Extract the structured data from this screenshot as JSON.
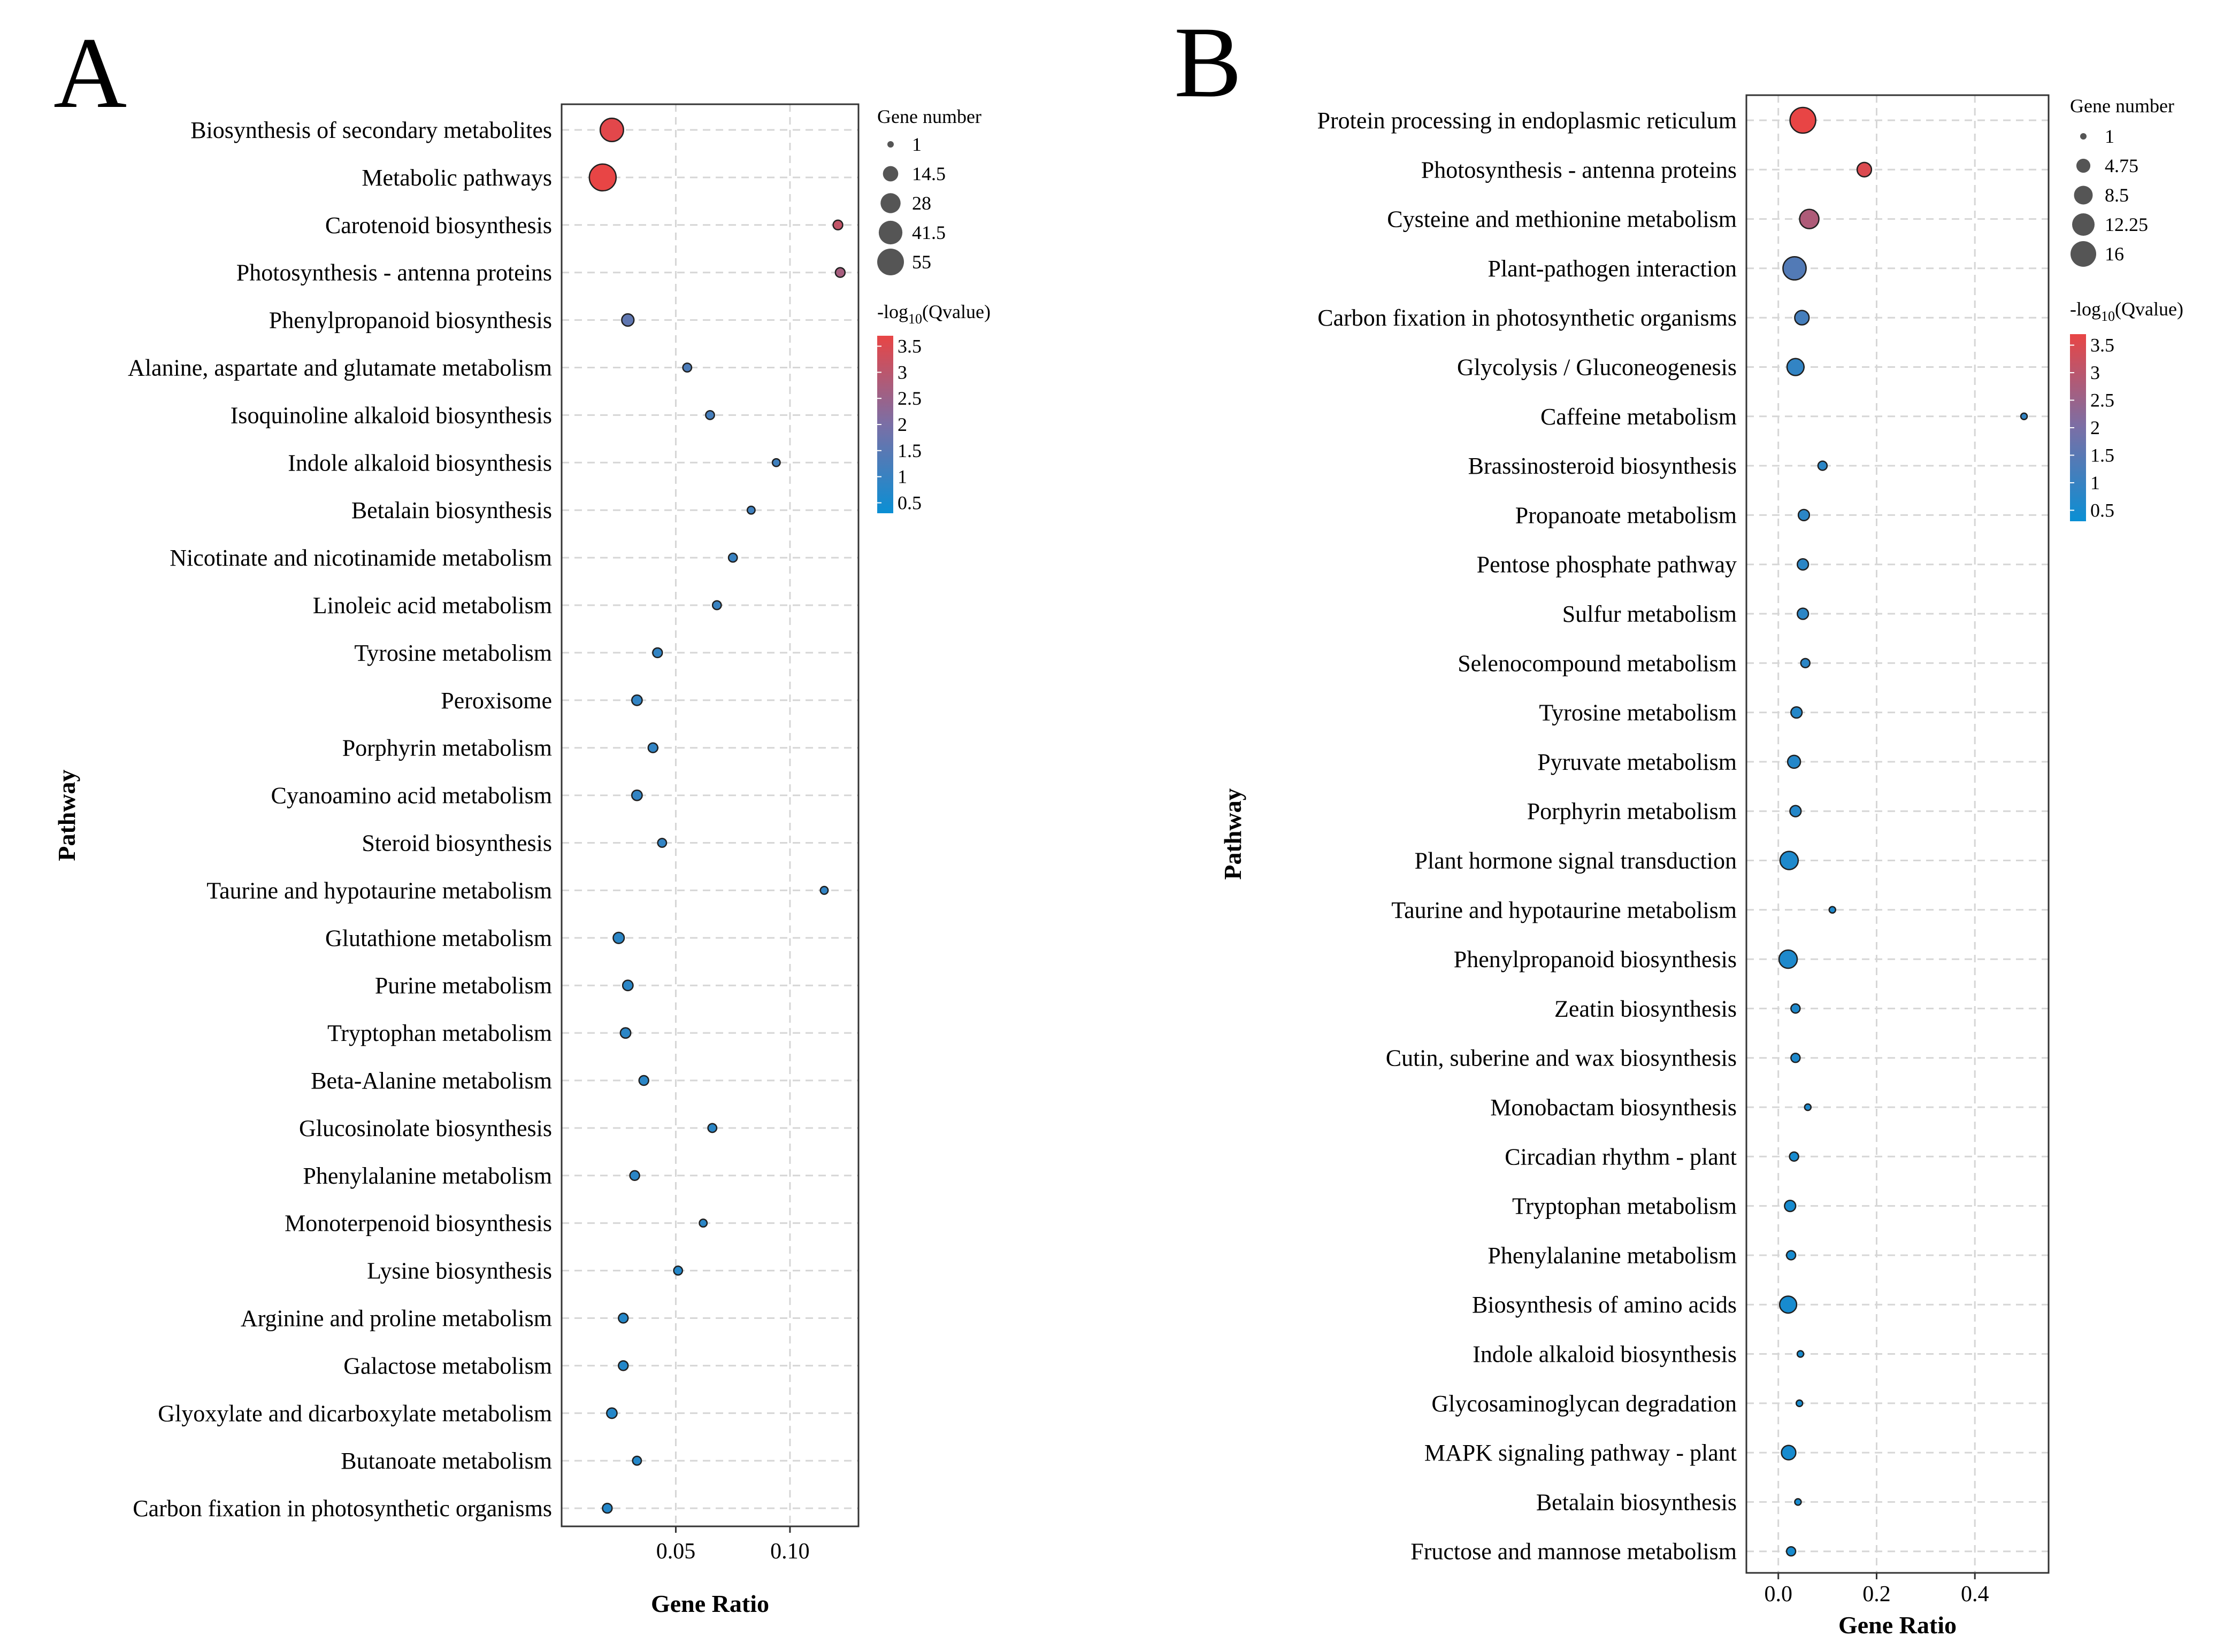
{
  "chart_data": [
    {
      "panel": "A",
      "type": "scatter",
      "xlabel": "Gene Ratio",
      "ylabel": "Pathway",
      "xlim": [
        0,
        0.13
      ],
      "xticks": [
        0.05,
        0.1
      ],
      "xtick_labels": [
        "0.05",
        "0.10"
      ],
      "size_legend": {
        "title": "Gene number",
        "values": [
          1,
          14.5,
          28,
          41.5,
          55
        ],
        "labels": [
          "1",
          "14.5",
          "28",
          "41.5",
          "55"
        ]
      },
      "color_legend": {
        "title_prefix": "-log",
        "title_sub": "10",
        "title_suffix": "(Qvalue)",
        "min": 0.3,
        "max": 3.7,
        "ticks": [
          3.5,
          3,
          2.5,
          2,
          1.5,
          1,
          0.5
        ],
        "tick_labels": [
          "3.5",
          "3",
          "2.5",
          "2",
          "1.5",
          "1",
          "0.5"
        ],
        "low_color": "#0a8fd4",
        "mid_color": "#7a6fa6",
        "high_color": "#e84545"
      },
      "points": [
        {
          "pathway": "Biosynthesis of secondary metabolites",
          "gene_ratio": 0.022,
          "gene_number": 40,
          "neglog10q": 3.6
        },
        {
          "pathway": "Metabolic pathways",
          "gene_ratio": 0.018,
          "gene_number": 55,
          "neglog10q": 3.7
        },
        {
          "pathway": "Carotenoid biosynthesis",
          "gene_ratio": 0.121,
          "gene_number": 4,
          "neglog10q": 3.1
        },
        {
          "pathway": "Photosynthesis - antenna proteins",
          "gene_ratio": 0.122,
          "gene_number": 4,
          "neglog10q": 2.7
        },
        {
          "pathway": "Phenylpropanoid biosynthesis",
          "gene_ratio": 0.029,
          "gene_number": 8,
          "neglog10q": 1.6
        },
        {
          "pathway": "Alanine, aspartate and glutamate metabolism",
          "gene_ratio": 0.055,
          "gene_number": 3,
          "neglog10q": 1.3
        },
        {
          "pathway": "Isoquinoline alkaloid biosynthesis",
          "gene_ratio": 0.065,
          "gene_number": 3,
          "neglog10q": 1.2
        },
        {
          "pathway": "Indole alkaloid biosynthesis",
          "gene_ratio": 0.094,
          "gene_number": 2,
          "neglog10q": 1.1
        },
        {
          "pathway": "Betalain biosynthesis",
          "gene_ratio": 0.083,
          "gene_number": 2,
          "neglog10q": 1.1
        },
        {
          "pathway": "Nicotinate and nicotinamide metabolism",
          "gene_ratio": 0.075,
          "gene_number": 3,
          "neglog10q": 1.0
        },
        {
          "pathway": "Linoleic acid metabolism",
          "gene_ratio": 0.068,
          "gene_number": 3,
          "neglog10q": 1.0
        },
        {
          "pathway": "Tyrosine metabolism",
          "gene_ratio": 0.042,
          "gene_number": 4,
          "neglog10q": 0.9
        },
        {
          "pathway": "Peroxisome",
          "gene_ratio": 0.033,
          "gene_number": 5,
          "neglog10q": 0.9
        },
        {
          "pathway": "Porphyrin metabolism",
          "gene_ratio": 0.04,
          "gene_number": 4,
          "neglog10q": 0.9
        },
        {
          "pathway": "Cyanoamino acid metabolism",
          "gene_ratio": 0.033,
          "gene_number": 5,
          "neglog10q": 0.9
        },
        {
          "pathway": "Steroid biosynthesis",
          "gene_ratio": 0.044,
          "gene_number": 3,
          "neglog10q": 0.9
        },
        {
          "pathway": "Taurine and hypotaurine metabolism",
          "gene_ratio": 0.115,
          "gene_number": 2,
          "neglog10q": 0.9
        },
        {
          "pathway": "Glutathione metabolism",
          "gene_ratio": 0.025,
          "gene_number": 6,
          "neglog10q": 0.8
        },
        {
          "pathway": "Purine metabolism",
          "gene_ratio": 0.029,
          "gene_number": 5,
          "neglog10q": 0.8
        },
        {
          "pathway": "Tryptophan metabolism",
          "gene_ratio": 0.028,
          "gene_number": 5,
          "neglog10q": 0.8
        },
        {
          "pathway": "Beta-Alanine metabolism",
          "gene_ratio": 0.036,
          "gene_number": 4,
          "neglog10q": 0.8
        },
        {
          "pathway": "Glucosinolate biosynthesis",
          "gene_ratio": 0.066,
          "gene_number": 3,
          "neglog10q": 0.8
        },
        {
          "pathway": "Phenylalanine metabolism",
          "gene_ratio": 0.032,
          "gene_number": 4,
          "neglog10q": 0.8
        },
        {
          "pathway": "Monoterpenoid biosynthesis",
          "gene_ratio": 0.062,
          "gene_number": 2,
          "neglog10q": 0.8
        },
        {
          "pathway": "Lysine biosynthesis",
          "gene_ratio": 0.051,
          "gene_number": 3,
          "neglog10q": 0.7
        },
        {
          "pathway": "Arginine and proline metabolism",
          "gene_ratio": 0.027,
          "gene_number": 4,
          "neglog10q": 0.7
        },
        {
          "pathway": "Galactose metabolism",
          "gene_ratio": 0.027,
          "gene_number": 4,
          "neglog10q": 0.7
        },
        {
          "pathway": "Glyoxylate and dicarboxylate metabolism",
          "gene_ratio": 0.022,
          "gene_number": 5,
          "neglog10q": 0.7
        },
        {
          "pathway": "Butanoate metabolism",
          "gene_ratio": 0.033,
          "gene_number": 3,
          "neglog10q": 0.7
        },
        {
          "pathway": "Carbon fixation in photosynthetic organisms",
          "gene_ratio": 0.02,
          "gene_number": 4,
          "neglog10q": 0.7
        }
      ]
    },
    {
      "panel": "B",
      "type": "scatter",
      "xlabel": "Gene Ratio",
      "ylabel": "Pathway",
      "xlim": [
        -0.065,
        0.55
      ],
      "xticks": [
        0.0,
        0.2,
        0.4
      ],
      "xtick_labels": [
        "0.0",
        "0.2",
        "0.4"
      ],
      "size_legend": {
        "title": "Gene number",
        "values": [
          1,
          4.75,
          8.5,
          12.25,
          16
        ],
        "labels": [
          "1",
          "4.75",
          "8.5",
          "12.25",
          "16"
        ]
      },
      "color_legend": {
        "title_prefix": "-log",
        "title_sub": "10",
        "title_suffix": "(Qvalue)",
        "min": 0.3,
        "max": 3.7,
        "ticks": [
          3.5,
          3,
          2.5,
          2,
          1.5,
          1,
          0.5
        ],
        "tick_labels": [
          "3.5",
          "3",
          "2.5",
          "2",
          "1.5",
          "1",
          "0.5"
        ],
        "low_color": "#0a8fd4",
        "mid_color": "#7a6fa6",
        "high_color": "#e84545"
      },
      "points": [
        {
          "pathway": "Protein processing in endoplasmic reticulum",
          "gene_ratio": 0.05,
          "gene_number": 16,
          "neglog10q": 3.7
        },
        {
          "pathway": "Photosynthesis - antenna proteins",
          "gene_ratio": 0.175,
          "gene_number": 5,
          "neglog10q": 3.5
        },
        {
          "pathway": "Cysteine and methionine metabolism",
          "gene_ratio": 0.063,
          "gene_number": 9,
          "neglog10q": 2.8
        },
        {
          "pathway": "Plant-pathogen interaction",
          "gene_ratio": 0.033,
          "gene_number": 13,
          "neglog10q": 1.4
        },
        {
          "pathway": "Carbon fixation in photosynthetic organisms",
          "gene_ratio": 0.048,
          "gene_number": 5,
          "neglog10q": 1.2
        },
        {
          "pathway": "Glycolysis / Gluconeogenesis",
          "gene_ratio": 0.035,
          "gene_number": 7,
          "neglog10q": 0.9
        },
        {
          "pathway": "Caffeine metabolism",
          "gene_ratio": 0.5,
          "gene_number": 1,
          "neglog10q": 0.9
        },
        {
          "pathway": "Brassinosteroid biosynthesis",
          "gene_ratio": 0.09,
          "gene_number": 2,
          "neglog10q": 0.8
        },
        {
          "pathway": "Propanoate metabolism",
          "gene_ratio": 0.052,
          "gene_number": 3,
          "neglog10q": 0.8
        },
        {
          "pathway": "Pentose phosphate pathway",
          "gene_ratio": 0.05,
          "gene_number": 3,
          "neglog10q": 0.8
        },
        {
          "pathway": "Sulfur metabolism",
          "gene_ratio": 0.05,
          "gene_number": 3,
          "neglog10q": 0.8
        },
        {
          "pathway": "Selenocompound metabolism",
          "gene_ratio": 0.055,
          "gene_number": 2,
          "neglog10q": 0.8
        },
        {
          "pathway": "Tyrosine metabolism",
          "gene_ratio": 0.037,
          "gene_number": 3,
          "neglog10q": 0.7
        },
        {
          "pathway": "Pyruvate metabolism",
          "gene_ratio": 0.032,
          "gene_number": 4,
          "neglog10q": 0.7
        },
        {
          "pathway": "Porphyrin metabolism",
          "gene_ratio": 0.035,
          "gene_number": 3,
          "neglog10q": 0.7
        },
        {
          "pathway": "Plant hormone signal transduction",
          "gene_ratio": 0.022,
          "gene_number": 8,
          "neglog10q": 0.6
        },
        {
          "pathway": "Taurine and hypotaurine metabolism",
          "gene_ratio": 0.11,
          "gene_number": 1,
          "neglog10q": 0.6
        },
        {
          "pathway": "Phenylpropanoid biosynthesis",
          "gene_ratio": 0.02,
          "gene_number": 8,
          "neglog10q": 0.6
        },
        {
          "pathway": "Zeatin biosynthesis",
          "gene_ratio": 0.035,
          "gene_number": 2,
          "neglog10q": 0.6
        },
        {
          "pathway": "Cutin, suberine and wax biosynthesis",
          "gene_ratio": 0.035,
          "gene_number": 2,
          "neglog10q": 0.6
        },
        {
          "pathway": "Monobactam biosynthesis",
          "gene_ratio": 0.06,
          "gene_number": 1,
          "neglog10q": 0.6
        },
        {
          "pathway": "Circadian rhythm - plant",
          "gene_ratio": 0.032,
          "gene_number": 2,
          "neglog10q": 0.5
        },
        {
          "pathway": "Tryptophan metabolism",
          "gene_ratio": 0.024,
          "gene_number": 3,
          "neglog10q": 0.5
        },
        {
          "pathway": "Phenylalanine metabolism",
          "gene_ratio": 0.026,
          "gene_number": 2,
          "neglog10q": 0.5
        },
        {
          "pathway": "Biosynthesis of amino acids",
          "gene_ratio": 0.02,
          "gene_number": 7,
          "neglog10q": 0.5
        },
        {
          "pathway": "Indole alkaloid biosynthesis",
          "gene_ratio": 0.045,
          "gene_number": 1,
          "neglog10q": 0.5
        },
        {
          "pathway": "Glycosaminoglycan degradation",
          "gene_ratio": 0.043,
          "gene_number": 1,
          "neglog10q": 0.5
        },
        {
          "pathway": "MAPK signaling pathway - plant",
          "gene_ratio": 0.021,
          "gene_number": 5,
          "neglog10q": 0.5
        },
        {
          "pathway": "Betalain biosynthesis",
          "gene_ratio": 0.04,
          "gene_number": 1,
          "neglog10q": 0.5
        },
        {
          "pathway": "Fructose and mannose metabolism",
          "gene_ratio": 0.026,
          "gene_number": 2,
          "neglog10q": 0.5
        }
      ]
    }
  ]
}
